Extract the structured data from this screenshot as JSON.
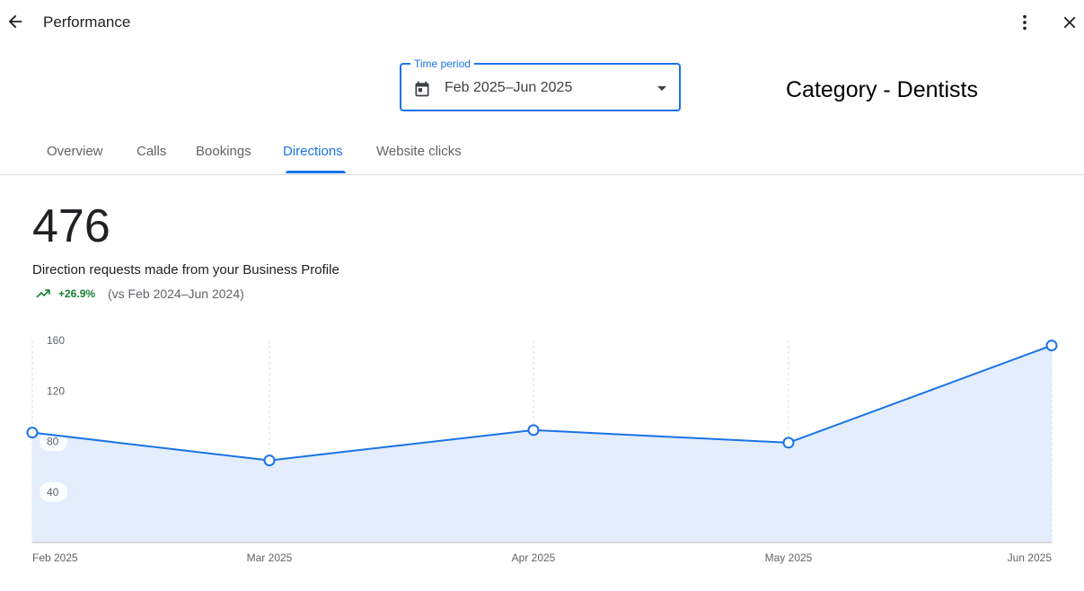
{
  "header": {
    "title": "Performance",
    "icons": {
      "back": "back-arrow-icon",
      "more": "more-vert-icon",
      "close": "close-icon"
    }
  },
  "time_period": {
    "label": "Time period",
    "value": "Feb 2025–Jun 2025",
    "icon": "calendar-icon"
  },
  "category_label": "Category - Dentists",
  "tabs": [
    {
      "label": "Overview",
      "active": false
    },
    {
      "label": "Calls",
      "active": false
    },
    {
      "label": "Bookings",
      "active": false
    },
    {
      "label": "Directions",
      "active": true
    },
    {
      "label": "Website clicks",
      "active": false
    }
  ],
  "summary": {
    "total": "476",
    "description": "Direction requests made from your Business Profile",
    "change": "+26.9%",
    "comparison": "(vs Feb 2024–Jun 2024)"
  },
  "colors": {
    "accent": "#1a73e8",
    "area_fill": "#e3edfc",
    "positive": "#188038"
  },
  "chart_data": {
    "type": "area",
    "categories": [
      "Feb 2025",
      "Mar 2025",
      "Apr 2025",
      "May 2025",
      "Jun 2025"
    ],
    "values": [
      87,
      65,
      89,
      79,
      156
    ],
    "y_ticks": [
      40,
      80,
      120,
      160
    ],
    "ylim": [
      0,
      160
    ],
    "grid": "vertical-dashed"
  }
}
